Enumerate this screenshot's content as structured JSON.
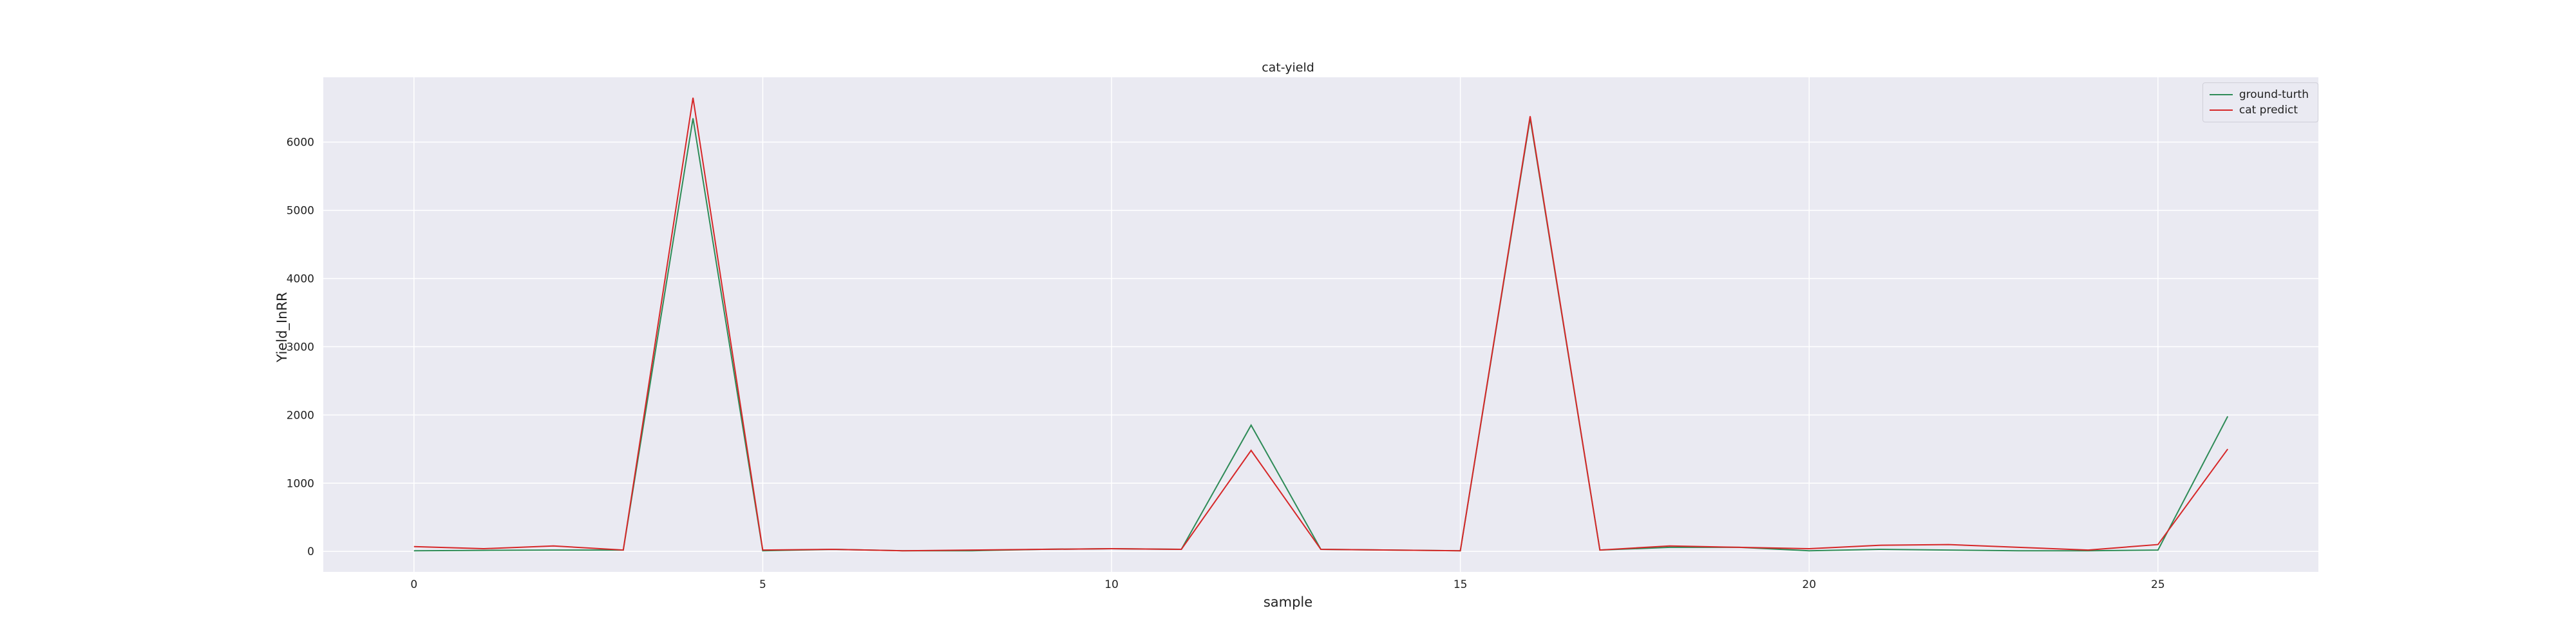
{
  "chart_data": {
    "type": "line",
    "title": "cat-yield",
    "xlabel": "sample",
    "ylabel": "Yield_InRR",
    "x": [
      0,
      1,
      2,
      3,
      4,
      5,
      6,
      7,
      8,
      9,
      10,
      11,
      12,
      13,
      14,
      15,
      16,
      17,
      18,
      19,
      20,
      21,
      22,
      23,
      24,
      25,
      26
    ],
    "xlim": [
      -1.3,
      27.3
    ],
    "ylim": [
      -300,
      6950
    ],
    "xticks": [
      0,
      5,
      10,
      15,
      20,
      25
    ],
    "yticks": [
      0,
      1000,
      2000,
      3000,
      4000,
      5000,
      6000
    ],
    "grid": true,
    "legend_position": "top-right",
    "background": "#eaeaf2",
    "series": [
      {
        "name": "ground-turth",
        "color": "#2e8b57",
        "values": [
          10,
          15,
          20,
          20,
          6350,
          10,
          30,
          10,
          10,
          30,
          40,
          30,
          1850,
          30,
          20,
          10,
          6350,
          20,
          60,
          60,
          10,
          30,
          20,
          10,
          10,
          20,
          1980
        ]
      },
      {
        "name": "cat predict",
        "color": "#d62728",
        "values": [
          70,
          40,
          80,
          20,
          6650,
          20,
          30,
          10,
          20,
          30,
          40,
          30,
          1480,
          30,
          20,
          10,
          6380,
          20,
          80,
          60,
          40,
          90,
          100,
          60,
          20,
          100,
          1500
        ]
      }
    ]
  }
}
